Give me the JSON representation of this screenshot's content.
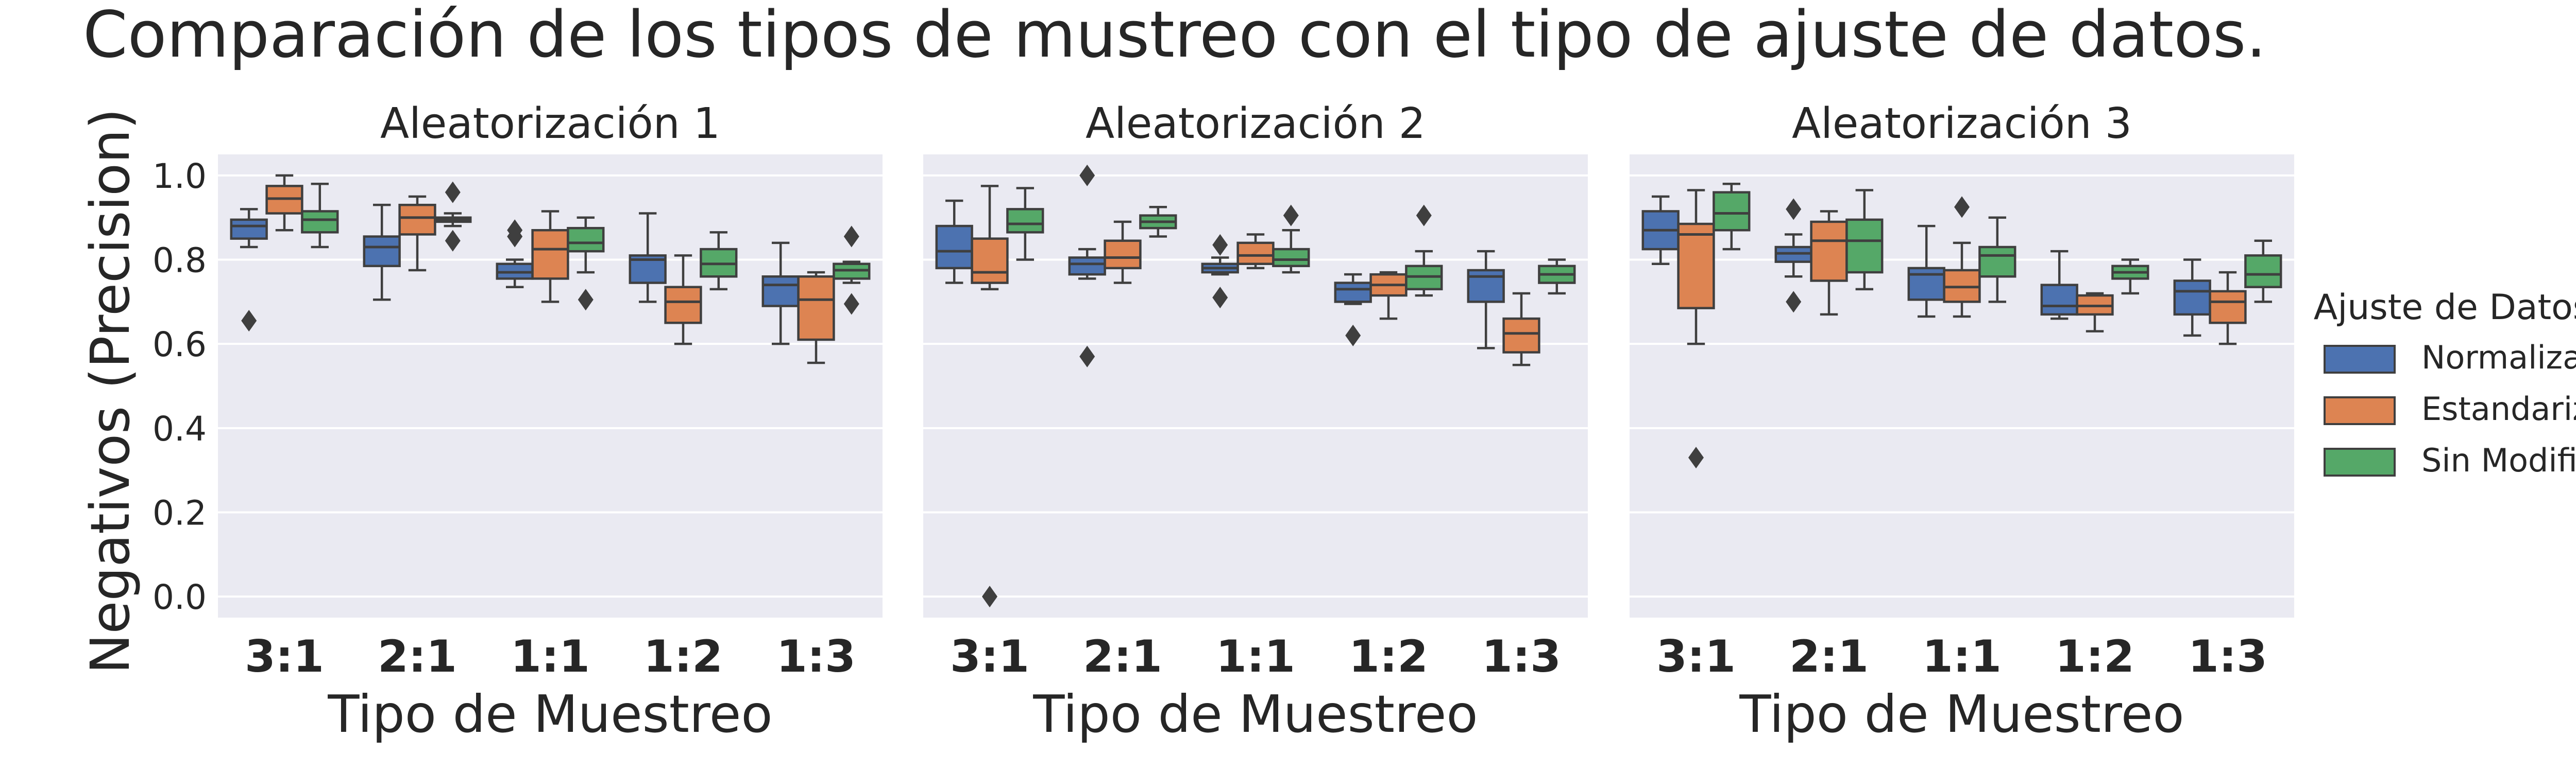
{
  "chart_data": {
    "type": "box",
    "title": "Comparación de los tipos de mustreo con el tipo de ajuste de datos.",
    "ylabel": "Negativos (Precision)",
    "xlabel": "Tipo de Muestreo",
    "categories": [
      "3:1",
      "2:1",
      "1:1",
      "1:2",
      "1:3"
    ],
    "ylim": [
      -0.05,
      1.05
    ],
    "yticks": [
      0.0,
      0.2,
      0.4,
      0.6,
      0.8,
      1.0
    ],
    "ytick_labels": [
      "0.0",
      "0.2",
      "0.4",
      "0.6",
      "0.8",
      "1.0"
    ],
    "grid": true,
    "legend": {
      "title": "Ajuste de Datos",
      "placement": "right",
      "entries": [
        "Normalizados",
        "Estandarizados",
        "Sin Modificación"
      ]
    },
    "colors": [
      "#4c72b0",
      "#dd8452",
      "#55a868"
    ],
    "panels": [
      {
        "title": "Aleatorización 1",
        "series": [
          {
            "name": "Normalizados",
            "boxes": [
              {
                "min": 0.83,
                "q1": 0.85,
                "median": 0.88,
                "q3": 0.895,
                "max": 0.92,
                "outliers": [
                  0.655
                ]
              },
              {
                "min": 0.705,
                "q1": 0.785,
                "median": 0.83,
                "q3": 0.855,
                "max": 0.93,
                "outliers": []
              },
              {
                "min": 0.735,
                "q1": 0.755,
                "median": 0.77,
                "q3": 0.79,
                "max": 0.8,
                "outliers": [
                  0.855,
                  0.87
                ]
              },
              {
                "min": 0.7,
                "q1": 0.745,
                "median": 0.8,
                "q3": 0.81,
                "max": 0.91,
                "outliers": []
              },
              {
                "min": 0.6,
                "q1": 0.69,
                "median": 0.74,
                "q3": 0.76,
                "max": 0.84,
                "outliers": []
              }
            ]
          },
          {
            "name": "Estandarizados",
            "boxes": [
              {
                "min": 0.87,
                "q1": 0.91,
                "median": 0.945,
                "q3": 0.975,
                "max": 1.0,
                "outliers": []
              },
              {
                "min": 0.775,
                "q1": 0.86,
                "median": 0.9,
                "q3": 0.93,
                "max": 0.95,
                "outliers": []
              },
              {
                "min": 0.7,
                "q1": 0.755,
                "median": 0.825,
                "q3": 0.87,
                "max": 0.915,
                "outliers": []
              },
              {
                "min": 0.6,
                "q1": 0.65,
                "median": 0.7,
                "q3": 0.735,
                "max": 0.81,
                "outliers": []
              },
              {
                "min": 0.555,
                "q1": 0.61,
                "median": 0.705,
                "q3": 0.76,
                "max": 0.77,
                "outliers": []
              }
            ]
          },
          {
            "name": "Sin Modificación",
            "boxes": [
              {
                "min": 0.83,
                "q1": 0.865,
                "median": 0.895,
                "q3": 0.915,
                "max": 0.98,
                "outliers": []
              },
              {
                "min": 0.88,
                "q1": 0.89,
                "median": 0.895,
                "q3": 0.9,
                "max": 0.91,
                "outliers": [
                  0.845,
                  0.96
                ]
              },
              {
                "min": 0.77,
                "q1": 0.82,
                "median": 0.84,
                "q3": 0.875,
                "max": 0.9,
                "outliers": [
                  0.705
                ]
              },
              {
                "min": 0.73,
                "q1": 0.76,
                "median": 0.79,
                "q3": 0.825,
                "max": 0.865,
                "outliers": []
              },
              {
                "min": 0.745,
                "q1": 0.755,
                "median": 0.775,
                "q3": 0.79,
                "max": 0.795,
                "outliers": [
                  0.695,
                  0.855
                ]
              }
            ]
          }
        ]
      },
      {
        "title": "Aleatorización 2",
        "series": [
          {
            "name": "Normalizados",
            "boxes": [
              {
                "min": 0.745,
                "q1": 0.78,
                "median": 0.82,
                "q3": 0.88,
                "max": 0.94,
                "outliers": []
              },
              {
                "min": 0.755,
                "q1": 0.765,
                "median": 0.79,
                "q3": 0.805,
                "max": 0.825,
                "outliers": [
                  1.0,
                  0.57
                ]
              },
              {
                "min": 0.765,
                "q1": 0.77,
                "median": 0.78,
                "q3": 0.79,
                "max": 0.805,
                "outliers": [
                  0.835,
                  0.71
                ]
              },
              {
                "min": 0.695,
                "q1": 0.7,
                "median": 0.73,
                "q3": 0.745,
                "max": 0.765,
                "outliers": [
                  0.62
                ]
              },
              {
                "min": 0.59,
                "q1": 0.7,
                "median": 0.76,
                "q3": 0.775,
                "max": 0.82,
                "outliers": []
              }
            ]
          },
          {
            "name": "Estandarizados",
            "boxes": [
              {
                "min": 0.73,
                "q1": 0.745,
                "median": 0.77,
                "q3": 0.85,
                "max": 0.975,
                "outliers": [
                  0.0
                ]
              },
              {
                "min": 0.745,
                "q1": 0.78,
                "median": 0.805,
                "q3": 0.845,
                "max": 0.89,
                "outliers": []
              },
              {
                "min": 0.78,
                "q1": 0.79,
                "median": 0.81,
                "q3": 0.84,
                "max": 0.86,
                "outliers": []
              },
              {
                "min": 0.66,
                "q1": 0.715,
                "median": 0.74,
                "q3": 0.765,
                "max": 0.77,
                "outliers": []
              },
              {
                "min": 0.55,
                "q1": 0.58,
                "median": 0.625,
                "q3": 0.66,
                "max": 0.72,
                "outliers": []
              }
            ]
          },
          {
            "name": "Sin Modificación",
            "boxes": [
              {
                "min": 0.8,
                "q1": 0.865,
                "median": 0.885,
                "q3": 0.92,
                "max": 0.97,
                "outliers": []
              },
              {
                "min": 0.855,
                "q1": 0.875,
                "median": 0.89,
                "q3": 0.905,
                "max": 0.925,
                "outliers": []
              },
              {
                "min": 0.77,
                "q1": 0.785,
                "median": 0.8,
                "q3": 0.825,
                "max": 0.87,
                "outliers": [
                  0.905
                ]
              },
              {
                "min": 0.715,
                "q1": 0.73,
                "median": 0.76,
                "q3": 0.785,
                "max": 0.82,
                "outliers": [
                  0.905
                ]
              },
              {
                "min": 0.72,
                "q1": 0.745,
                "median": 0.765,
                "q3": 0.785,
                "max": 0.8,
                "outliers": []
              }
            ]
          }
        ]
      },
      {
        "title": "Aleatorización 3",
        "series": [
          {
            "name": "Normalizados",
            "boxes": [
              {
                "min": 0.79,
                "q1": 0.825,
                "median": 0.87,
                "q3": 0.915,
                "max": 0.95,
                "outliers": []
              },
              {
                "min": 0.76,
                "q1": 0.795,
                "median": 0.815,
                "q3": 0.83,
                "max": 0.86,
                "outliers": [
                  0.92,
                  0.7
                ]
              },
              {
                "min": 0.665,
                "q1": 0.705,
                "median": 0.765,
                "q3": 0.78,
                "max": 0.88,
                "outliers": []
              },
              {
                "min": 0.66,
                "q1": 0.67,
                "median": 0.69,
                "q3": 0.74,
                "max": 0.82,
                "outliers": []
              },
              {
                "min": 0.62,
                "q1": 0.67,
                "median": 0.725,
                "q3": 0.75,
                "max": 0.8,
                "outliers": []
              }
            ]
          },
          {
            "name": "Estandarizados",
            "boxes": [
              {
                "min": 0.6,
                "q1": 0.685,
                "median": 0.86,
                "q3": 0.885,
                "max": 0.965,
                "outliers": [
                  0.33
                ]
              },
              {
                "min": 0.67,
                "q1": 0.75,
                "median": 0.845,
                "q3": 0.89,
                "max": 0.915,
                "outliers": []
              },
              {
                "min": 0.665,
                "q1": 0.7,
                "median": 0.735,
                "q3": 0.775,
                "max": 0.84,
                "outliers": [
                  0.925
                ]
              },
              {
                "min": 0.63,
                "q1": 0.67,
                "median": 0.69,
                "q3": 0.715,
                "max": 0.72,
                "outliers": []
              },
              {
                "min": 0.6,
                "q1": 0.65,
                "median": 0.7,
                "q3": 0.725,
                "max": 0.77,
                "outliers": []
              }
            ]
          },
          {
            "name": "Sin Modificación",
            "boxes": [
              {
                "min": 0.825,
                "q1": 0.87,
                "median": 0.91,
                "q3": 0.96,
                "max": 0.98,
                "outliers": []
              },
              {
                "min": 0.73,
                "q1": 0.77,
                "median": 0.845,
                "q3": 0.895,
                "max": 0.965,
                "outliers": []
              },
              {
                "min": 0.7,
                "q1": 0.76,
                "median": 0.81,
                "q3": 0.83,
                "max": 0.9,
                "outliers": []
              },
              {
                "min": 0.72,
                "q1": 0.755,
                "median": 0.77,
                "q3": 0.785,
                "max": 0.8,
                "outliers": []
              },
              {
                "min": 0.7,
                "q1": 0.735,
                "median": 0.765,
                "q3": 0.81,
                "max": 0.845,
                "outliers": []
              }
            ]
          }
        ]
      }
    ]
  }
}
